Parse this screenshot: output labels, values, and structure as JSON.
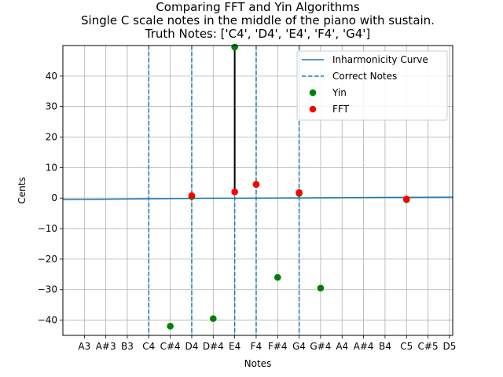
{
  "chart_data": {
    "type": "scatter",
    "title": [
      "Comparing FFT and Yin Algorithms",
      "Single C scale notes in the middle of the piano with sustain.",
      "Truth Notes: ['C4', 'D4', 'E4', 'F4', 'G4']"
    ],
    "xlabel": "Notes",
    "ylabel": "Cents",
    "categories": [
      "A3",
      "A#3",
      "B3",
      "C4",
      "C#4",
      "D4",
      "D#4",
      "E4",
      "F4",
      "F#4",
      "G4",
      "G#4",
      "A4",
      "A#4",
      "B4",
      "C5",
      "C#5",
      "D5"
    ],
    "xlim": [
      -1.0,
      17.15
    ],
    "ylim": [
      -45,
      50
    ],
    "yticks": [
      -40,
      -30,
      -20,
      -10,
      0,
      10,
      20,
      30,
      40
    ],
    "grid": true,
    "legend_position": "top-right",
    "correct_notes": [
      "C4",
      "D4",
      "E4",
      "F4",
      "G4"
    ],
    "inharmonicity_curve": {
      "name": "Inharmonicity Curve",
      "x": [
        -1.0,
        2,
        5,
        8,
        11,
        14,
        17.15
      ],
      "y": [
        -0.5,
        -0.3,
        -0.1,
        0.0,
        0.1,
        0.2,
        0.3
      ]
    },
    "series": [
      {
        "name": "Yin",
        "color": "#008000",
        "points": [
          {
            "x": "C#4",
            "y": -42
          },
          {
            "x": "D#4",
            "y": -39.5
          },
          {
            "x": "E4",
            "y": 49.5
          },
          {
            "x": "F#4",
            "y": -26
          },
          {
            "x": "G#4",
            "y": -29.5
          },
          {
            "x": "D4",
            "y": 0.5
          },
          {
            "x": "F4",
            "y": 4.5
          },
          {
            "x": "G4",
            "y": 1.5
          },
          {
            "x": "C5",
            "y": -0.5
          }
        ]
      },
      {
        "name": "FFT",
        "color": "#ff0000",
        "points": [
          {
            "x": "D4",
            "y": 0.8
          },
          {
            "x": "E4",
            "y": 2.0
          },
          {
            "x": "F4",
            "y": 4.5
          },
          {
            "x": "G4",
            "y": 1.8
          },
          {
            "x": "C5",
            "y": -0.3
          }
        ]
      }
    ],
    "error_lines": [
      {
        "x": "E4",
        "y_from": 2.0,
        "y_to": 49.5
      }
    ],
    "legend": [
      {
        "label": "Inharmonicity Curve",
        "kind": "solid-line",
        "color": "#1f77b4"
      },
      {
        "label": "Correct Notes",
        "kind": "dashed-line",
        "color": "#1f77b4"
      },
      {
        "label": "Yin",
        "kind": "dot",
        "color": "#008000"
      },
      {
        "label": "FFT",
        "kind": "dot",
        "color": "#ff0000"
      }
    ]
  }
}
